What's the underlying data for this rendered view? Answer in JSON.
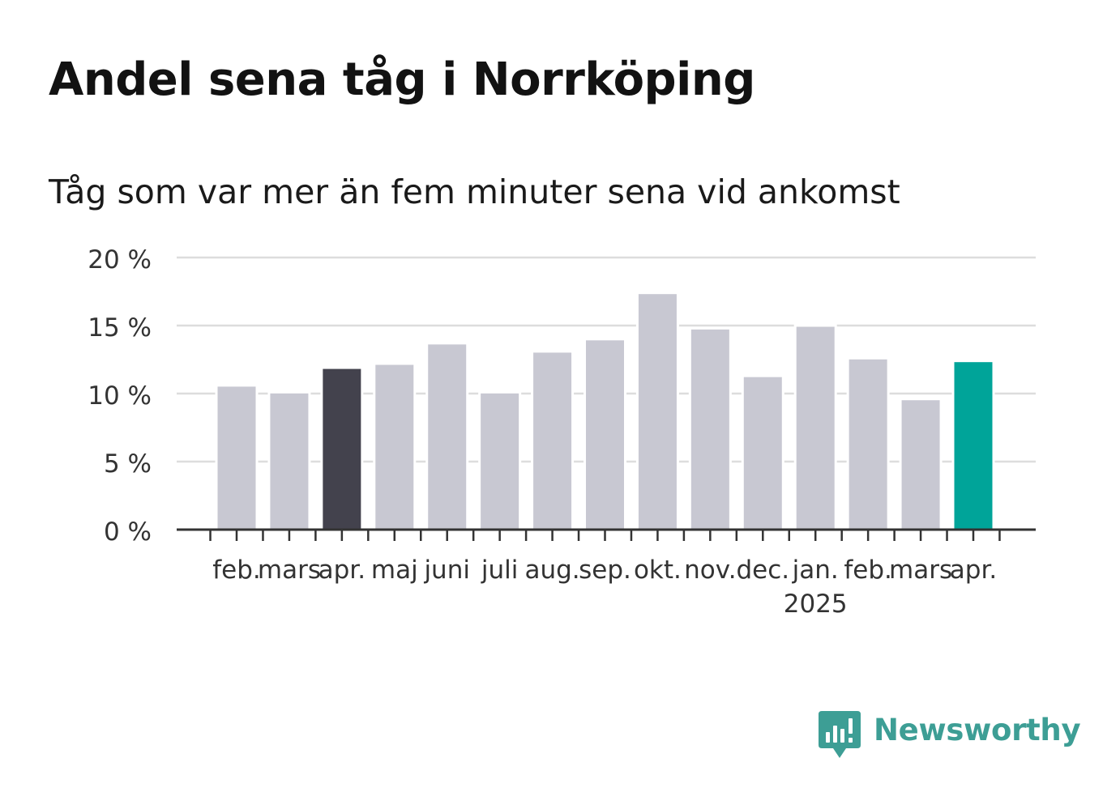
{
  "title": "Andel sena tåg i Norrköping",
  "subtitle": "Tåg som var mer än fem minuter sena vid ankomst",
  "brand": {
    "name": "Newsworthy",
    "icon": "newsworthy-logo-icon",
    "color": "#3d9e95"
  },
  "chart_data": {
    "type": "bar",
    "categories": [
      "feb.",
      "mars",
      "apr.",
      "maj",
      "juni",
      "juli",
      "aug.",
      "sep.",
      "okt.",
      "nov.",
      "dec.",
      "jan.",
      "feb.",
      "mars",
      "apr."
    ],
    "year_labels": [
      {
        "category_index": 11,
        "label": "2025"
      }
    ],
    "values": [
      10.6,
      10.1,
      11.9,
      12.2,
      13.7,
      10.1,
      13.1,
      14.0,
      17.4,
      14.8,
      11.3,
      15.0,
      12.6,
      9.6,
      12.4
    ],
    "bar_colors": [
      "#c8c8d2",
      "#c8c8d2",
      "#43424d",
      "#c8c8d2",
      "#c8c8d2",
      "#c8c8d2",
      "#c8c8d2",
      "#c8c8d2",
      "#c8c8d2",
      "#c8c8d2",
      "#c8c8d2",
      "#c8c8d2",
      "#c8c8d2",
      "#c8c8d2",
      "#00a499"
    ],
    "colors": {
      "default_bar": "#c8c8d2",
      "highlight_previous_year": "#43424d",
      "highlight_current": "#00a499",
      "grid": "#dddddd",
      "axis": "#333333"
    },
    "yticks": [
      0,
      5,
      10,
      15,
      20
    ],
    "ytick_labels": [
      "0 %",
      "5 %",
      "10 %",
      "15 %",
      "20 %"
    ],
    "ylim": [
      0,
      20
    ],
    "xlabel": "",
    "ylabel": "",
    "grid": true,
    "legend": "none"
  }
}
